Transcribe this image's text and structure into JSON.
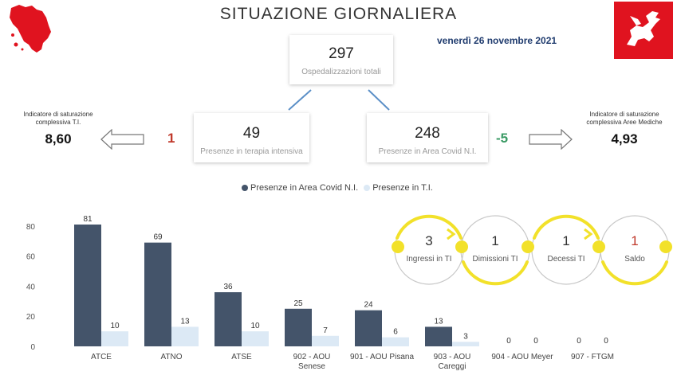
{
  "header": {
    "title": "SITUAZIONE GIORNALIERA",
    "date": "venerdì 26 novembre 2021"
  },
  "colors": {
    "covid_bar": "#44546a",
    "ti_bar": "#dce9f5",
    "delta_positive": "#c0392b",
    "delta_negative": "#3a9a64",
    "cycle": "#f2e12a",
    "flag": "#e0131f"
  },
  "kpi": {
    "total": {
      "value": "297",
      "label": "Ospedalizzazioni totali"
    },
    "ti": {
      "value": "49",
      "label": "Presenze in terapia intensiva",
      "delta": "1"
    },
    "covid": {
      "value": "248",
      "label": "Presenze in Area Covid N.I.",
      "delta": "-5"
    }
  },
  "indicators": {
    "ti": {
      "label_line1": "Indicatore di saturazione",
      "label_line2": "complessiva T.I.",
      "value": "8,60"
    },
    "am": {
      "label_line1": "Indicatore di saturazione",
      "label_line2": "complessiva Aree Mediche",
      "value": "4,93"
    }
  },
  "cycle": [
    {
      "value": "3",
      "label": "Ingressi in TI"
    },
    {
      "value": "1",
      "label": "Dimissioni TI"
    },
    {
      "value": "1",
      "label": "Decessi TI"
    },
    {
      "value": "1",
      "label": "Saldo"
    }
  ],
  "chart_data": {
    "type": "bar",
    "categories": [
      [
        "ATCE"
      ],
      [
        "ATNO"
      ],
      [
        "ATSE"
      ],
      [
        "902 - AOU",
        "Senese"
      ],
      [
        "901 - AOU Pisana"
      ],
      [
        "903 - AOU",
        "Careggi"
      ],
      [
        "904 - AOU Meyer"
      ],
      [
        "907 - FTGM"
      ]
    ],
    "series": [
      {
        "name": "Presenze in Area Covid N.I.",
        "values": [
          81,
          69,
          36,
          25,
          24,
          13,
          0,
          0
        ]
      },
      {
        "name": "Presenze in T.I.",
        "values": [
          10,
          13,
          10,
          7,
          6,
          3,
          0,
          0
        ]
      }
    ],
    "yticks": [
      0,
      20,
      40,
      60,
      80
    ],
    "ylim": [
      0,
      90
    ],
    "legend": "top"
  }
}
